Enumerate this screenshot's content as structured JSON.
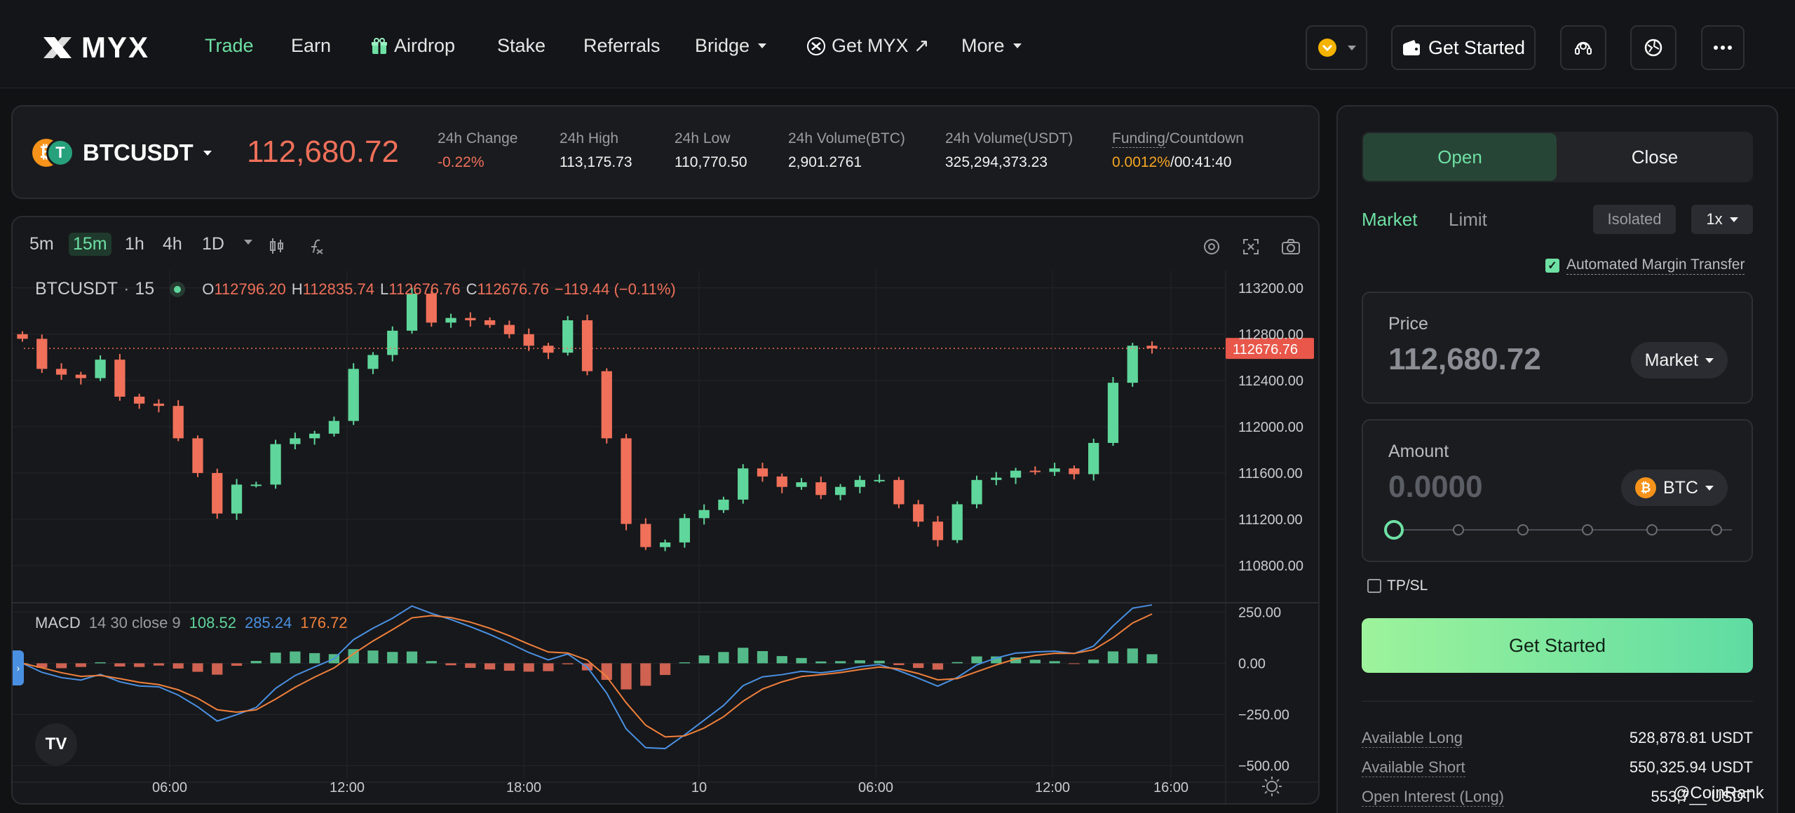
{
  "nav": {
    "brand": "MYX",
    "items": [
      {
        "label": "Trade",
        "active": true
      },
      {
        "label": "Earn"
      },
      {
        "label": "Airdrop",
        "icon": "gift-icon"
      },
      {
        "label": "Stake"
      },
      {
        "label": "Referrals"
      },
      {
        "label": "Bridge",
        "dropdown": true
      },
      {
        "label": "Get MYX ↗",
        "icon": "myx-coin-icon"
      },
      {
        "label": "More",
        "dropdown": true
      }
    ],
    "get_started_label": "Get Started",
    "right_icons": [
      "network-selector-icon",
      "wallet-icon",
      "support-icon",
      "language-icon",
      "more-dots-icon"
    ]
  },
  "ticker": {
    "symbol": "BTCUSDT",
    "price": "112,680.72",
    "stats": [
      {
        "label": "24h Change",
        "value": "-0.22%",
        "color": "#f0705a"
      },
      {
        "label": "24h High",
        "value": "113,175.73"
      },
      {
        "label": "24h Low",
        "value": "110,770.50"
      },
      {
        "label": "24h Volume(BTC)",
        "value": "2,901.2761"
      },
      {
        "label": "24h Volume(USDT)",
        "value": "325,294,373.23"
      }
    ],
    "funding": {
      "label_a": "Funding",
      "label_b": "/Countdown",
      "rate": "0.0012%",
      "countdown": "/00:41:40",
      "rate_color": "#f5a623"
    }
  },
  "chart": {
    "timeframes": [
      "5m",
      "15m",
      "1h",
      "4h",
      "1D"
    ],
    "active_timeframe": "15m",
    "legend": {
      "symbol": "BTCUSDT",
      "interval": "15",
      "o_label": "O",
      "o": "112796.20",
      "h_label": "H",
      "h": "112835.74",
      "l_label": "L",
      "l": "112676.76",
      "c_label": "C",
      "c": "112676.76",
      "change": "−119.44 (−0.11%)"
    },
    "macd": {
      "label": "MACD",
      "params": "14 30 close 9",
      "v1": "108.52",
      "v2": "285.24",
      "v3": "176.72"
    },
    "current_price_tag": "112676.76",
    "price_axis_labels": [
      "113200.00",
      "112800.00",
      "112400.00",
      "112000.00",
      "111600.00",
      "111200.00",
      "110800.00"
    ],
    "macd_axis_labels": [
      "250.00",
      "0.00",
      "−250.00",
      "−500.00"
    ],
    "time_axis_labels": [
      "06:00",
      "12:00",
      "18:00",
      "10",
      "06:00",
      "12:00",
      "16:00"
    ],
    "toolbar_icons": [
      "candle-type-icon",
      "indicator-icon",
      "settings-icon",
      "fullscreen-icon",
      "camera-icon"
    ],
    "colors": {
      "up": "#5fd69b",
      "down": "#f0705a",
      "macd": "#4a90e2",
      "signal": "#f0803c"
    }
  },
  "chart_data": {
    "type": "candlestick",
    "interval": "15m",
    "series": [
      {
        "name": "BTCUSDT",
        "values": [
          112760,
          112500,
          112450,
          112420,
          112580,
          112260,
          112200,
          112180,
          111900,
          111600,
          111250,
          111500,
          111500,
          111850,
          111900,
          111940,
          112050,
          112500,
          112620,
          112830,
          113150,
          112900,
          112940,
          112920,
          112880,
          112800,
          112700,
          112640,
          112920,
          112480,
          111900,
          111160,
          110960,
          111000,
          111210,
          111280,
          111370,
          111640,
          111570,
          111480,
          111520,
          111410,
          111480,
          111540,
          111540,
          111330,
          111180,
          111020,
          111330,
          111540,
          111560,
          111620,
          111610,
          111640,
          111590,
          111860,
          112380,
          112700,
          112677
        ]
      }
    ],
    "ylim": [
      110600,
      113350
    ],
    "macd": {
      "params": "14 30 close 9",
      "macd_line": 285.24,
      "signal": 176.72,
      "histogram": 108.52,
      "ylim": [
        -560,
        330
      ]
    }
  },
  "panel": {
    "open_label": "Open",
    "close_label": "Close",
    "market_label": "Market",
    "limit_label": "Limit",
    "margin_mode": "Isolated",
    "leverage": "1x",
    "auto_margin_label": "Automated Margin Transfer",
    "price_label": "Price",
    "price_value": "112,680.72",
    "price_mode": "Market",
    "amount_label": "Amount",
    "amount_placeholder": "0.0000",
    "amount_unit": "BTC",
    "slider_percent": 0,
    "tpsl_label": "TP/SL",
    "cta_label": "Get Started",
    "info": [
      {
        "label": "Available Long",
        "value": "528,878.81 USDT"
      },
      {
        "label": "Available Short",
        "value": "550,325.94 USDT"
      },
      {
        "label": "Open Interest (Long)",
        "value": "553,7__ USDT"
      }
    ]
  },
  "watermark": "@CoinRank"
}
